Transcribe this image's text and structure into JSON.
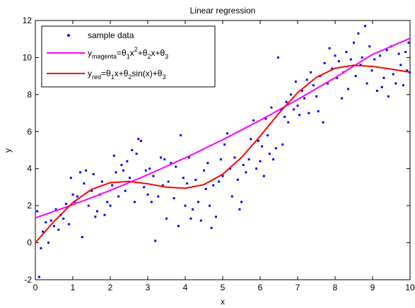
{
  "chart_data": {
    "type": "scatter",
    "title": "Linear regression",
    "xlabel": "x",
    "ylabel": "y",
    "xlim": [
      0,
      10
    ],
    "ylim": [
      -2,
      12
    ],
    "xticks": [
      "0",
      "1",
      "2",
      "3",
      "4",
      "5",
      "6",
      "7",
      "8",
      "9",
      "10"
    ],
    "yticks": [
      "-2",
      "0",
      "2",
      "4",
      "6",
      "8",
      "10",
      "12"
    ],
    "grid": false,
    "legend_position": "top-left",
    "legend": {
      "sample": "sample data",
      "magenta": {
        "y": "y",
        "sub": "magenta",
        "eq1": "=θ",
        "s1": "1",
        "eq2": "x",
        "sup": "2",
        "eq3": "+θ",
        "s2": "2",
        "eq4": "x+θ",
        "s3": "3"
      },
      "red": {
        "y": "y",
        "sub": "red",
        "eq1": "=θ",
        "s1": "1",
        "eq2": "x+θ",
        "s2": "2",
        "eq3": "sin(x)+θ",
        "s3": "3"
      }
    },
    "colors": {
      "sample": "#0000ff",
      "magenta": "#ff00ff",
      "red": "#ff0000"
    },
    "series": [
      {
        "type": "scatter",
        "marker": "dot",
        "points": [
          [
            0.05,
            1.7
          ],
          [
            0.1,
            -1.85
          ],
          [
            0.15,
            -0.3
          ],
          [
            0.2,
            0.6
          ],
          [
            0.28,
            1.1
          ],
          [
            0.35,
            0.0
          ],
          [
            0.42,
            1.2
          ],
          [
            0.5,
            0.9
          ],
          [
            0.55,
            1.8
          ],
          [
            0.62,
            0.7
          ],
          [
            0.68,
            1.5
          ],
          [
            0.75,
            1.3
          ],
          [
            0.82,
            2.1
          ],
          [
            0.9,
            1.0
          ],
          [
            0.95,
            3.5
          ],
          [
            1.0,
            2.6
          ],
          [
            1.05,
            2.2
          ],
          [
            1.12,
            2.5
          ],
          [
            1.2,
            3.8
          ],
          [
            1.25,
            0.3
          ],
          [
            1.3,
            3.2
          ],
          [
            1.35,
            3.9
          ],
          [
            1.42,
            2.0
          ],
          [
            1.5,
            2.8
          ],
          [
            1.55,
            3.7
          ],
          [
            1.6,
            1.4
          ],
          [
            1.65,
            1.7
          ],
          [
            1.72,
            2.6
          ],
          [
            1.78,
            3.3
          ],
          [
            1.85,
            1.5
          ],
          [
            1.92,
            2.2
          ],
          [
            2.0,
            2.0
          ],
          [
            2.05,
            3.1
          ],
          [
            2.1,
            4.7
          ],
          [
            2.15,
            3.8
          ],
          [
            2.22,
            2.5
          ],
          [
            2.3,
            4.2
          ],
          [
            2.35,
            3.9
          ],
          [
            2.4,
            2.8
          ],
          [
            2.45,
            4.4
          ],
          [
            2.52,
            3.5
          ],
          [
            2.58,
            5.0
          ],
          [
            2.65,
            2.2
          ],
          [
            2.7,
            4.8
          ],
          [
            2.75,
            5.6
          ],
          [
            2.82,
            5.5
          ],
          [
            2.9,
            3.0
          ],
          [
            2.95,
            3.9
          ],
          [
            3.0,
            2.6
          ],
          [
            3.05,
            4.0
          ],
          [
            3.1,
            2.2
          ],
          [
            3.15,
            3.6
          ],
          [
            3.2,
            0.1
          ],
          [
            3.28,
            2.5
          ],
          [
            3.35,
            4.6
          ],
          [
            3.4,
            3.1
          ],
          [
            3.45,
            4.5
          ],
          [
            3.5,
            1.3
          ],
          [
            3.55,
            3.3
          ],
          [
            3.62,
            4.3
          ],
          [
            3.7,
            2.4
          ],
          [
            3.75,
            4.1
          ],
          [
            3.82,
            0.9
          ],
          [
            3.88,
            5.8
          ],
          [
            3.95,
            3.5
          ],
          [
            4.0,
            2.0
          ],
          [
            4.05,
            3.2
          ],
          [
            4.1,
            4.6
          ],
          [
            4.15,
            1.3
          ],
          [
            4.2,
            1.8
          ],
          [
            4.28,
            3.4
          ],
          [
            4.35,
            2.2
          ],
          [
            4.42,
            1.2
          ],
          [
            4.5,
            3.9
          ],
          [
            4.55,
            2.9
          ],
          [
            4.6,
            4.3
          ],
          [
            4.65,
            2.0
          ],
          [
            4.7,
            0.8
          ],
          [
            4.75,
            3.1
          ],
          [
            4.82,
            1.4
          ],
          [
            4.9,
            3.3
          ],
          [
            4.95,
            4.5
          ],
          [
            5.0,
            3.6
          ],
          [
            5.05,
            5.3
          ],
          [
            5.12,
            5.9
          ],
          [
            5.2,
            4.0
          ],
          [
            5.25,
            2.5
          ],
          [
            5.32,
            4.6
          ],
          [
            5.4,
            3.4
          ],
          [
            5.45,
            1.8
          ],
          [
            5.5,
            2.2
          ],
          [
            5.55,
            4.2
          ],
          [
            5.62,
            3.8
          ],
          [
            5.7,
            4.5
          ],
          [
            5.75,
            5.6
          ],
          [
            5.82,
            6.6
          ],
          [
            5.9,
            4.0
          ],
          [
            5.95,
            5.5
          ],
          [
            6.0,
            4.4
          ],
          [
            6.05,
            5.2
          ],
          [
            6.1,
            3.6
          ],
          [
            6.15,
            6.7
          ],
          [
            6.2,
            5.8
          ],
          [
            6.25,
            4.8
          ],
          [
            6.3,
            7.3
          ],
          [
            6.35,
            4.5
          ],
          [
            6.42,
            5.1
          ],
          [
            6.48,
            10.0
          ],
          [
            6.55,
            7.2
          ],
          [
            6.6,
            5.3
          ],
          [
            6.65,
            6.8
          ],
          [
            6.7,
            7.6
          ],
          [
            6.75,
            6.5
          ],
          [
            6.82,
            8.0
          ],
          [
            6.9,
            7.2
          ],
          [
            6.95,
            8.7
          ],
          [
            7.0,
            7.4
          ],
          [
            7.05,
            6.9
          ],
          [
            7.12,
            8.2
          ],
          [
            7.18,
            7.8
          ],
          [
            7.25,
            8.8
          ],
          [
            7.3,
            7.0
          ],
          [
            7.35,
            9.2
          ],
          [
            7.42,
            8.5
          ],
          [
            7.5,
            7.9
          ],
          [
            7.55,
            7.1
          ],
          [
            7.6,
            9.0
          ],
          [
            7.68,
            6.5
          ],
          [
            7.72,
            9.7
          ],
          [
            7.8,
            8.6
          ],
          [
            7.85,
            10.5
          ],
          [
            7.92,
            9.4
          ],
          [
            8.0,
            10.1
          ],
          [
            8.05,
            8.9
          ],
          [
            8.1,
            9.8
          ],
          [
            8.18,
            7.8
          ],
          [
            8.22,
            9.2
          ],
          [
            8.3,
            10.3
          ],
          [
            8.35,
            8.3
          ],
          [
            8.42,
            9.9
          ],
          [
            8.5,
            10.8
          ],
          [
            8.55,
            9.0
          ],
          [
            8.62,
            11.3
          ],
          [
            8.68,
            9.6
          ],
          [
            8.72,
            10.0
          ],
          [
            8.8,
            11.7
          ],
          [
            8.85,
            8.6
          ],
          [
            8.92,
            10.6
          ],
          [
            8.98,
            9.3
          ],
          [
            9.05,
            9.9
          ],
          [
            9.12,
            8.2
          ],
          [
            9.2,
            10.1
          ],
          [
            9.25,
            8.4
          ],
          [
            9.3,
            8.9
          ],
          [
            9.38,
            10.4
          ],
          [
            9.42,
            7.9
          ],
          [
            9.5,
            10.6
          ],
          [
            9.55,
            9.1
          ],
          [
            9.62,
            8.6
          ],
          [
            9.7,
            10.2
          ],
          [
            9.75,
            9.6
          ],
          [
            9.82,
            8.5
          ],
          [
            9.88,
            10.3
          ],
          [
            9.92,
            9.3
          ],
          [
            9.96,
            10.8
          ],
          [
            9.99,
            9.2
          ]
        ]
      },
      {
        "type": "line",
        "fit": "magenta",
        "x": [
          0,
          1,
          2,
          3,
          4,
          5,
          6,
          7,
          8,
          9,
          10
        ],
        "y": [
          1.34,
          2.05,
          2.82,
          3.67,
          4.58,
          5.56,
          6.61,
          7.73,
          8.91,
          10.17,
          11.04
        ]
      },
      {
        "type": "line",
        "fit": "red",
        "x": [
          0,
          0.5,
          1,
          1.5,
          2,
          2.5,
          3,
          3.5,
          4,
          4.5,
          5,
          5.5,
          6,
          6.5,
          7,
          7.5,
          8,
          8.5,
          9,
          9.5,
          10
        ],
        "y": [
          0.0,
          1.15,
          2.17,
          2.88,
          3.24,
          3.31,
          3.18,
          3.0,
          2.94,
          3.14,
          3.69,
          4.6,
          5.75,
          6.99,
          8.1,
          8.93,
          9.42,
          9.58,
          9.52,
          9.37,
          9.21
        ]
      }
    ]
  }
}
